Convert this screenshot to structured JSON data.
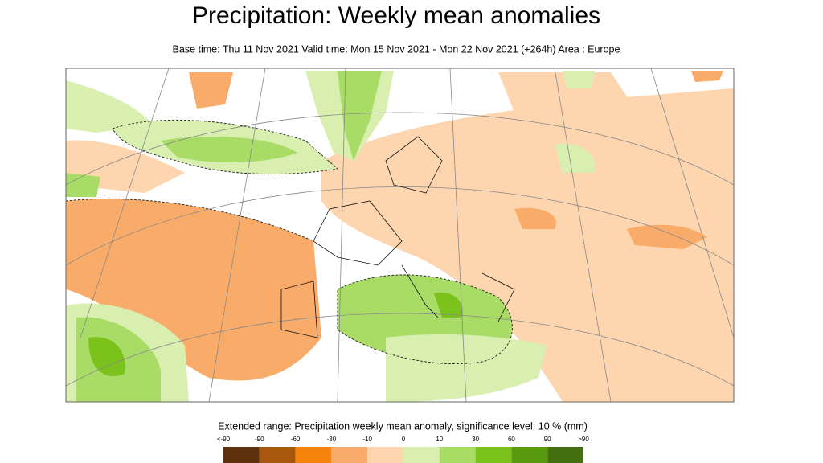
{
  "header": {
    "title": "Precipitation: Weekly mean anomalies",
    "subtitle": "Base time: Thu 11 Nov 2021 Valid time: Mon 15 Nov 2021 - Mon 22 Nov 2021 (+264h) Area : Europe"
  },
  "legend": {
    "title": "Extended range: Precipitation weekly mean anomaly, significance level: 10 % (mm)",
    "labels": [
      "<-90",
      "-90",
      "-60",
      "-30",
      "-10",
      "0",
      "10",
      "30",
      "60",
      "90",
      ">90"
    ],
    "colors": [
      "#5e300b",
      "#a9560e",
      "#f7830f",
      "#f9ac69",
      "#fdd6b0",
      "#d8efb0",
      "#a9dc66",
      "#7cc21c",
      "#5a9a12",
      "#446f10"
    ]
  }
}
